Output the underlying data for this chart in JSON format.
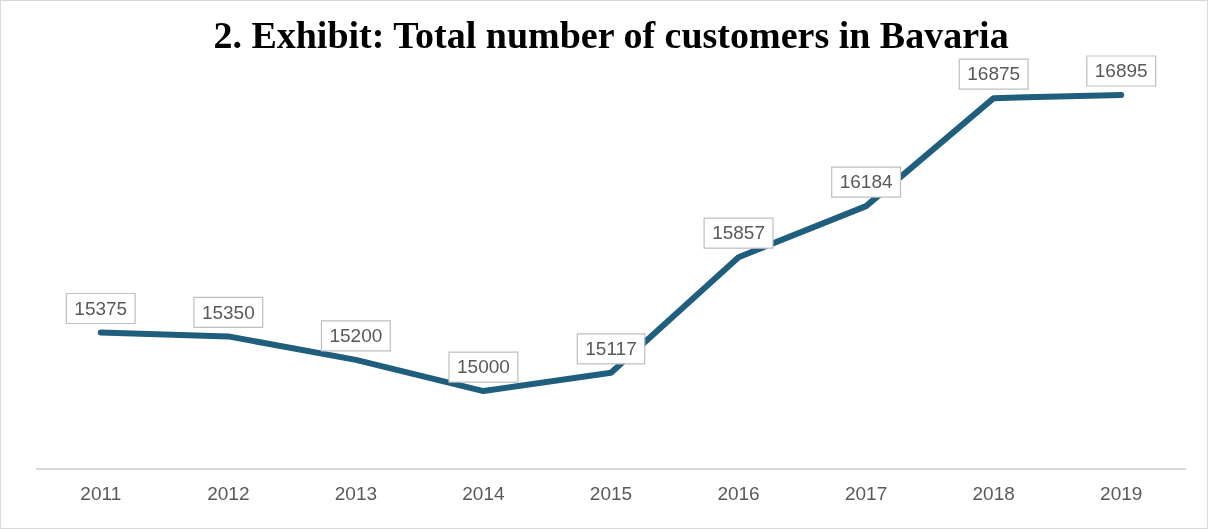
{
  "chart_data": {
    "type": "line",
    "title": "2. Exhibit: Total number of customers in Bavaria",
    "categories": [
      "2011",
      "2012",
      "2013",
      "2014",
      "2015",
      "2016",
      "2017",
      "2018",
      "2019"
    ],
    "series": [
      {
        "color": "#1f5f7d",
        "values": [
          15375,
          15350,
          15200,
          15000,
          15117,
          15857,
          16184,
          16875,
          16895
        ]
      }
    ],
    "data_labels": true,
    "grid": false,
    "legend": false,
    "line_style": "solid",
    "tick_labels": "x"
  }
}
